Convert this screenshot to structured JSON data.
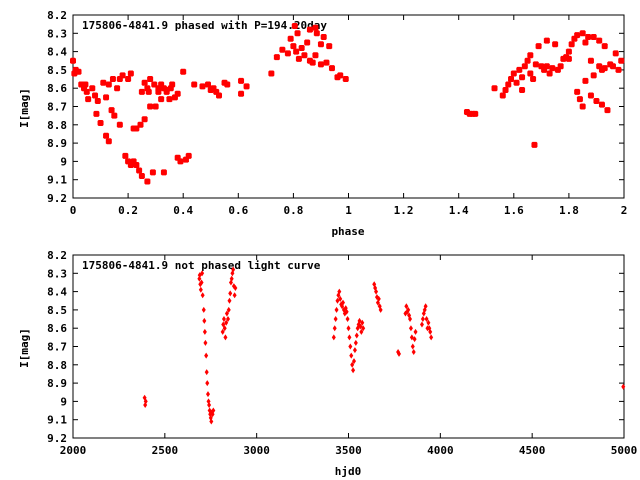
{
  "chart_data": [
    {
      "type": "scatter",
      "title": "175806-4841.9 phased with P=194.20day",
      "xlabel": "phase",
      "ylabel": "I[mag]",
      "xlim": [
        0,
        2
      ],
      "ylim": [
        8.2,
        9.2
      ],
      "y_inverted": true,
      "xticks": [
        0,
        0.2,
        0.4,
        0.6,
        0.8,
        1,
        1.2,
        1.4,
        1.6,
        1.8,
        2
      ],
      "yticks": [
        8.2,
        8.3,
        8.4,
        8.5,
        8.6,
        8.7,
        8.8,
        8.9,
        9,
        9.1,
        9.2
      ],
      "ytick_labels": [
        "8.2",
        "8.3",
        "8.4",
        "8.5",
        "8.6",
        "8.7",
        "8.8",
        "8.9",
        "9",
        "9.1",
        "9.2"
      ],
      "marker": "filled-square",
      "color": "#ff0000",
      "points": [
        [
          0.0,
          8.45
        ],
        [
          0.005,
          8.52
        ],
        [
          0.01,
          8.5
        ],
        [
          0.02,
          8.51
        ],
        [
          0.03,
          8.58
        ],
        [
          0.04,
          8.6
        ],
        [
          0.045,
          8.58
        ],
        [
          0.05,
          8.62
        ],
        [
          0.055,
          8.66
        ],
        [
          0.07,
          8.6
        ],
        [
          0.08,
          8.64
        ],
        [
          0.085,
          8.74
        ],
        [
          0.09,
          8.67
        ],
        [
          0.1,
          8.79
        ],
        [
          0.11,
          8.57
        ],
        [
          0.12,
          8.65
        ],
        [
          0.12,
          8.86
        ],
        [
          0.13,
          8.58
        ],
        [
          0.13,
          8.89
        ],
        [
          0.14,
          8.72
        ],
        [
          0.145,
          8.55
        ],
        [
          0.15,
          8.75
        ],
        [
          0.16,
          8.6
        ],
        [
          0.17,
          8.8
        ],
        [
          0.17,
          8.55
        ],
        [
          0.18,
          8.53
        ],
        [
          0.19,
          8.97
        ],
        [
          0.2,
          8.55
        ],
        [
          0.2,
          9.0
        ],
        [
          0.21,
          9.02
        ],
        [
          0.21,
          8.52
        ],
        [
          0.22,
          9.0
        ],
        [
          0.22,
          8.82
        ],
        [
          0.23,
          9.02
        ],
        [
          0.23,
          8.82
        ],
        [
          0.24,
          9.05
        ],
        [
          0.245,
          8.8
        ],
        [
          0.25,
          9.08
        ],
        [
          0.25,
          8.62
        ],
        [
          0.26,
          8.57
        ],
        [
          0.26,
          8.77
        ],
        [
          0.27,
          8.6
        ],
        [
          0.27,
          9.11
        ],
        [
          0.275,
          8.62
        ],
        [
          0.28,
          8.55
        ],
        [
          0.28,
          8.7
        ],
        [
          0.29,
          9.06
        ],
        [
          0.295,
          8.58
        ],
        [
          0.3,
          8.7
        ],
        [
          0.31,
          8.6
        ],
        [
          0.31,
          8.62
        ],
        [
          0.32,
          8.58
        ],
        [
          0.32,
          8.66
        ],
        [
          0.33,
          9.06
        ],
        [
          0.33,
          8.6
        ],
        [
          0.34,
          8.61
        ],
        [
          0.34,
          8.62
        ],
        [
          0.35,
          8.66
        ],
        [
          0.355,
          8.6
        ],
        [
          0.36,
          8.58
        ],
        [
          0.37,
          8.65
        ],
        [
          0.38,
          8.63
        ],
        [
          0.38,
          8.98
        ],
        [
          0.39,
          9.0
        ],
        [
          0.4,
          8.51
        ],
        [
          0.41,
          8.99
        ],
        [
          0.42,
          8.97
        ],
        [
          0.44,
          8.58
        ],
        [
          0.47,
          8.59
        ],
        [
          0.49,
          8.58
        ],
        [
          0.5,
          8.61
        ],
        [
          0.51,
          8.6
        ],
        [
          0.52,
          8.62
        ],
        [
          0.53,
          8.64
        ],
        [
          0.55,
          8.57
        ],
        [
          0.56,
          8.58
        ],
        [
          0.61,
          8.56
        ],
        [
          0.61,
          8.63
        ],
        [
          0.63,
          8.59
        ],
        [
          0.72,
          8.52
        ],
        [
          0.74,
          8.43
        ],
        [
          0.76,
          8.39
        ],
        [
          0.78,
          8.41
        ],
        [
          0.79,
          8.33
        ],
        [
          0.8,
          8.37
        ],
        [
          0.805,
          8.26
        ],
        [
          0.81,
          8.4
        ],
        [
          0.815,
          8.3
        ],
        [
          0.82,
          8.44
        ],
        [
          0.83,
          8.38
        ],
        [
          0.84,
          8.42
        ],
        [
          0.85,
          8.35
        ],
        [
          0.86,
          8.28
        ],
        [
          0.86,
          8.45
        ],
        [
          0.87,
          8.46
        ],
        [
          0.88,
          8.27
        ],
        [
          0.88,
          8.42
        ],
        [
          0.885,
          8.3
        ],
        [
          0.9,
          8.47
        ],
        [
          0.9,
          8.36
        ],
        [
          0.91,
          8.32
        ],
        [
          0.92,
          8.46
        ],
        [
          0.93,
          8.37
        ],
        [
          0.94,
          8.49
        ],
        [
          0.96,
          8.54
        ],
        [
          0.97,
          8.53
        ],
        [
          0.99,
          8.55
        ],
        [
          1.43,
          8.73
        ],
        [
          1.44,
          8.74
        ],
        [
          1.45,
          8.74
        ],
        [
          1.46,
          8.74
        ],
        [
          1.53,
          8.6
        ],
        [
          1.56,
          8.64
        ],
        [
          1.57,
          8.61
        ],
        [
          1.58,
          8.58
        ],
        [
          1.59,
          8.55
        ],
        [
          1.6,
          8.52
        ],
        [
          1.61,
          8.57
        ],
        [
          1.62,
          8.5
        ],
        [
          1.63,
          8.54
        ],
        [
          1.63,
          8.61
        ],
        [
          1.64,
          8.48
        ],
        [
          1.65,
          8.45
        ],
        [
          1.66,
          8.52
        ],
        [
          1.66,
          8.42
        ],
        [
          1.67,
          8.55
        ],
        [
          1.675,
          8.91
        ],
        [
          1.68,
          8.47
        ],
        [
          1.69,
          8.37
        ],
        [
          1.7,
          8.48
        ],
        [
          1.71,
          8.5
        ],
        [
          1.72,
          8.34
        ],
        [
          1.72,
          8.48
        ],
        [
          1.73,
          8.52
        ],
        [
          1.74,
          8.49
        ],
        [
          1.75,
          8.36
        ],
        [
          1.76,
          8.5
        ],
        [
          1.77,
          8.48
        ],
        [
          1.78,
          8.44
        ],
        [
          1.79,
          8.43
        ],
        [
          1.8,
          8.4
        ],
        [
          1.8,
          8.44
        ],
        [
          1.81,
          8.36
        ],
        [
          1.82,
          8.33
        ],
        [
          1.83,
          8.31
        ],
        [
          1.83,
          8.62
        ],
        [
          1.84,
          8.66
        ],
        [
          1.85,
          8.3
        ],
        [
          1.85,
          8.7
        ],
        [
          1.86,
          8.35
        ],
        [
          1.86,
          8.56
        ],
        [
          1.87,
          8.32
        ],
        [
          1.88,
          8.45
        ],
        [
          1.88,
          8.64
        ],
        [
          1.89,
          8.32
        ],
        [
          1.89,
          8.53
        ],
        [
          1.9,
          8.67
        ],
        [
          1.91,
          8.34
        ],
        [
          1.91,
          8.48
        ],
        [
          1.92,
          8.69
        ],
        [
          1.92,
          8.5
        ],
        [
          1.93,
          8.37
        ],
        [
          1.93,
          8.49
        ],
        [
          1.94,
          8.72
        ],
        [
          1.95,
          8.47
        ],
        [
          1.96,
          8.48
        ],
        [
          1.97,
          8.41
        ],
        [
          1.98,
          8.5
        ],
        [
          1.99,
          8.45
        ]
      ]
    },
    {
      "type": "scatter",
      "title": "175806-4841.9 not phased light curve",
      "xlabel": "hjd0",
      "ylabel": "I[mag]",
      "xlim": [
        2000,
        5000
      ],
      "ylim": [
        8.2,
        9.2
      ],
      "y_inverted": true,
      "xticks": [
        2000,
        2500,
        3000,
        3500,
        4000,
        4500,
        5000
      ],
      "yticks": [
        8.2,
        8.3,
        8.4,
        8.5,
        8.6,
        8.7,
        8.8,
        8.9,
        9,
        9.1,
        9.2
      ],
      "ytick_labels": [
        "8.2",
        "8.3",
        "8.4",
        "8.5",
        "8.6",
        "8.7",
        "8.8",
        "8.9",
        "9",
        "9.1",
        "9.2"
      ],
      "marker": "diamond",
      "color": "#ff0000",
      "points": [
        [
          2390,
          8.98
        ],
        [
          2393,
          9.02
        ],
        [
          2396,
          9.0
        ],
        [
          2688,
          8.33
        ],
        [
          2690,
          8.31
        ],
        [
          2693,
          8.36
        ],
        [
          2696,
          8.39
        ],
        [
          2700,
          8.35
        ],
        [
          2703,
          8.3
        ],
        [
          2706,
          8.42
        ],
        [
          2712,
          8.5
        ],
        [
          2715,
          8.56
        ],
        [
          2718,
          8.62
        ],
        [
          2721,
          8.68
        ],
        [
          2725,
          8.75
        ],
        [
          2728,
          8.84
        ],
        [
          2731,
          8.9
        ],
        [
          2735,
          8.96
        ],
        [
          2738,
          9.0
        ],
        [
          2741,
          9.02
        ],
        [
          2744,
          9.05
        ],
        [
          2747,
          9.07
        ],
        [
          2750,
          9.09
        ],
        [
          2753,
          9.11
        ],
        [
          2756,
          9.06
        ],
        [
          2760,
          9.07
        ],
        [
          2764,
          9.05
        ],
        [
          2815,
          8.62
        ],
        [
          2818,
          8.58
        ],
        [
          2822,
          8.55
        ],
        [
          2826,
          8.6
        ],
        [
          2830,
          8.65
        ],
        [
          2834,
          8.57
        ],
        [
          2838,
          8.52
        ],
        [
          2844,
          8.55
        ],
        [
          2848,
          8.5
        ],
        [
          2852,
          8.45
        ],
        [
          2856,
          8.41
        ],
        [
          2860,
          8.35
        ],
        [
          2864,
          8.33
        ],
        [
          2868,
          8.3
        ],
        [
          2872,
          8.28
        ],
        [
          2876,
          8.37
        ],
        [
          2880,
          8.42
        ],
        [
          2884,
          8.38
        ],
        [
          3420,
          8.65
        ],
        [
          3425,
          8.6
        ],
        [
          3430,
          8.55
        ],
        [
          3435,
          8.5
        ],
        [
          3440,
          8.45
        ],
        [
          3445,
          8.42
        ],
        [
          3450,
          8.4
        ],
        [
          3455,
          8.44
        ],
        [
          3460,
          8.47
        ],
        [
          3465,
          8.48
        ],
        [
          3470,
          8.46
        ],
        [
          3475,
          8.5
        ],
        [
          3480,
          8.52
        ],
        [
          3485,
          8.49
        ],
        [
          3490,
          8.51
        ],
        [
          3495,
          8.55
        ],
        [
          3500,
          8.6
        ],
        [
          3505,
          8.65
        ],
        [
          3510,
          8.7
        ],
        [
          3515,
          8.75
        ],
        [
          3520,
          8.8
        ],
        [
          3525,
          8.83
        ],
        [
          3530,
          8.78
        ],
        [
          3535,
          8.72
        ],
        [
          3540,
          8.68
        ],
        [
          3545,
          8.64
        ],
        [
          3550,
          8.6
        ],
        [
          3555,
          8.58
        ],
        [
          3560,
          8.56
        ],
        [
          3565,
          8.59
        ],
        [
          3570,
          8.62
        ],
        [
          3575,
          8.57
        ],
        [
          3580,
          8.6
        ],
        [
          3640,
          8.36
        ],
        [
          3645,
          8.38
        ],
        [
          3650,
          8.4
        ],
        [
          3655,
          8.43
        ],
        [
          3660,
          8.46
        ],
        [
          3665,
          8.44
        ],
        [
          3670,
          8.48
        ],
        [
          3675,
          8.5
        ],
        [
          3770,
          8.73
        ],
        [
          3775,
          8.74
        ],
        [
          3810,
          8.52
        ],
        [
          3815,
          8.48
        ],
        [
          3820,
          8.51
        ],
        [
          3825,
          8.5
        ],
        [
          3830,
          8.53
        ],
        [
          3835,
          8.55
        ],
        [
          3840,
          8.6
        ],
        [
          3845,
          8.65
        ],
        [
          3850,
          8.7
        ],
        [
          3855,
          8.73
        ],
        [
          3860,
          8.66
        ],
        [
          3865,
          8.62
        ],
        [
          3900,
          8.58
        ],
        [
          3905,
          8.55
        ],
        [
          3910,
          8.52
        ],
        [
          3915,
          8.5
        ],
        [
          3920,
          8.48
        ],
        [
          3925,
          8.55
        ],
        [
          3930,
          8.6
        ],
        [
          3935,
          8.57
        ],
        [
          3940,
          8.6
        ],
        [
          3945,
          8.62
        ],
        [
          3950,
          8.65
        ],
        [
          4996,
          8.92
        ]
      ]
    }
  ]
}
